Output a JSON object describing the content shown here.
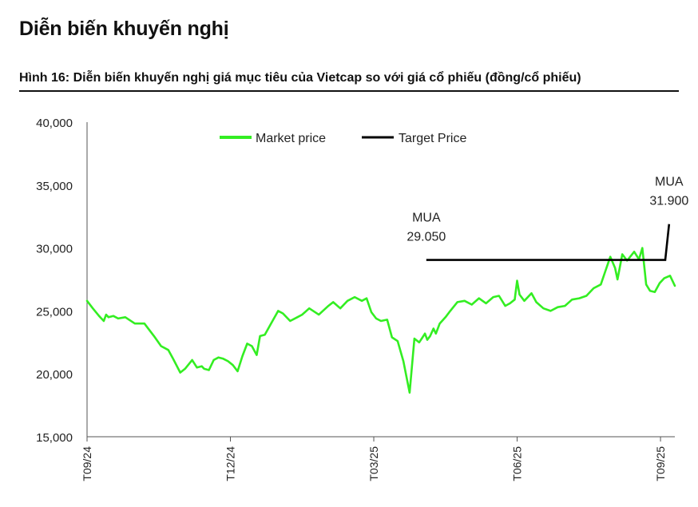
{
  "header": {
    "title": "Diễn biến khuyến nghị",
    "subtitle": "Hình 16: Diễn biến khuyến nghị giá mục tiêu của Vietcap so với giá cổ phiếu (đồng/cổ phiếu)"
  },
  "colors": {
    "market": "#33ee22",
    "target": "#000000",
    "axis": "#555555"
  },
  "chart_data": {
    "type": "line",
    "title": "Diễn biến khuyến nghị giá mục tiêu của Vietcap so với giá cổ phiếu",
    "xlabel": "",
    "ylabel": "đồng/cổ phiếu",
    "ylim": [
      15000,
      40000
    ],
    "yticks": [
      15000,
      20000,
      25000,
      30000,
      35000,
      40000
    ],
    "ytick_labels": [
      "15,000",
      "20,000",
      "25,000",
      "30,000",
      "35,000",
      "40,000"
    ],
    "xlim": [
      0,
      12.3
    ],
    "xticks": [
      {
        "x": 0,
        "label": "T09/24"
      },
      {
        "x": 3,
        "label": "T12/24"
      },
      {
        "x": 6,
        "label": "T03/25"
      },
      {
        "x": 9,
        "label": "T06/25"
      },
      {
        "x": 12,
        "label": "T09/25"
      }
    ],
    "legend": [
      "Market price",
      "Target Price"
    ],
    "legend_position": "top-center",
    "series": [
      {
        "name": "Market price",
        "x": [
          0,
          0.12,
          0.25,
          0.35,
          0.4,
          0.45,
          0.55,
          0.65,
          0.8,
          1.0,
          1.2,
          1.4,
          1.55,
          1.7,
          1.8,
          1.95,
          2.05,
          2.2,
          2.3,
          2.4,
          2.45,
          2.55,
          2.65,
          2.75,
          2.85,
          2.95,
          3.05,
          3.15,
          3.25,
          3.35,
          3.45,
          3.55,
          3.62,
          3.72,
          3.85,
          4.0,
          4.1,
          4.25,
          4.4,
          4.5,
          4.65,
          4.85,
          5.05,
          5.15,
          5.3,
          5.45,
          5.6,
          5.75,
          5.85,
          5.95,
          6.05,
          6.15,
          6.28,
          6.38,
          6.5,
          6.62,
          6.75,
          6.85,
          6.95,
          7.02,
          7.07,
          7.12,
          7.18,
          7.25,
          7.3,
          7.38,
          7.5,
          7.6,
          7.75,
          7.9,
          8.05,
          8.2,
          8.35,
          8.5,
          8.62,
          8.75,
          8.85,
          8.95,
          9.0,
          9.05,
          9.15,
          9.3,
          9.4,
          9.55,
          9.7,
          9.85,
          10.0,
          10.15,
          10.3,
          10.45,
          10.6,
          10.75,
          10.85,
          10.95,
          11.05,
          11.1,
          11.2,
          11.3,
          11.45,
          11.55,
          11.62,
          11.7,
          11.78,
          11.88,
          11.98,
          12.08,
          12.2,
          12.3
        ],
        "values": [
          25800,
          25200,
          24600,
          24200,
          24700,
          24500,
          24600,
          24400,
          24500,
          24000,
          24000,
          23000,
          22200,
          21900,
          21200,
          20100,
          20400,
          21100,
          20500,
          20600,
          20400,
          20300,
          21100,
          21300,
          21200,
          21000,
          20700,
          20200,
          21400,
          22400,
          22200,
          21500,
          23000,
          23100,
          24000,
          25000,
          24800,
          24200,
          24500,
          24700,
          25200,
          24700,
          25400,
          25700,
          25200,
          25800,
          26100,
          25800,
          26000,
          24900,
          24400,
          24200,
          24300,
          22900,
          22600,
          21000,
          18500,
          22800,
          22500,
          22900,
          23200,
          22700,
          23000,
          23600,
          23200,
          24000,
          24500,
          25000,
          25700,
          25800,
          25500,
          26000,
          25600,
          26100,
          26200,
          25400,
          25600,
          25900,
          27400,
          26300,
          25800,
          26400,
          25700,
          25200,
          25000,
          25300,
          25400,
          25900,
          26000,
          26200,
          26800,
          27100,
          28200,
          29300,
          28400,
          27500,
          29500,
          29000,
          29700,
          29100,
          30000,
          27100,
          26600,
          26500,
          27200,
          27600,
          27800,
          27000
        ]
      },
      {
        "name": "Target Price",
        "x": [
          7.1,
          12.1,
          12.1,
          12.18
        ],
        "values": [
          29050,
          29050,
          29050,
          31900
        ]
      }
    ],
    "annotations": [
      {
        "line1": "MUA",
        "line2": "29.050",
        "x": 7.1,
        "y": 29050
      },
      {
        "line1": "MUA",
        "line2": "31.900",
        "x": 12.18,
        "y": 31900
      }
    ]
  }
}
